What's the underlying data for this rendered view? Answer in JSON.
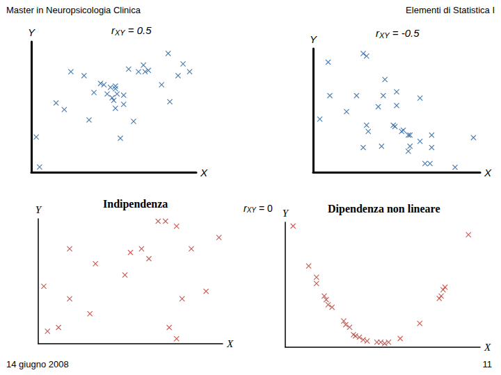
{
  "header": {
    "left": "Master in Neuropsicologia Clinica",
    "right": "Elementi di Statistica I"
  },
  "footer": {
    "left": "14 giugno 2008",
    "right": "11"
  },
  "chart_data": [
    {
      "type": "scatter",
      "title": "rXY = 0.5",
      "xlabel": "X",
      "ylabel": "Y",
      "xlim": [
        0,
        10
      ],
      "ylim": [
        0,
        10
      ],
      "tick_labels": false,
      "grid": false,
      "color": "#1f5c99",
      "marker": "x",
      "x": [
        0.3,
        0.5,
        1.5,
        2.0,
        2.4,
        3.2,
        3.5,
        3.8,
        4.2,
        4.4,
        4.6,
        4.8,
        4.9,
        5.0,
        5.1,
        5.1,
        5.1,
        5.2,
        5.4,
        5.6,
        5.6,
        5.9,
        6.2,
        6.5,
        6.8,
        6.9,
        7.1,
        7.9,
        8.3,
        8.4,
        8.9,
        9.2,
        9.6
      ],
      "values": [
        2.7,
        0.4,
        5.3,
        4.8,
        7.7,
        7.4,
        4.0,
        6.1,
        6.8,
        6.7,
        6.0,
        6.5,
        5.7,
        5.5,
        6.4,
        4.9,
        6.6,
        6.0,
        2.6,
        5.2,
        5.9,
        7.9,
        3.9,
        7.7,
        8.2,
        7.7,
        7.8,
        6.7,
        9.1,
        5.4,
        7.4,
        8.3,
        7.7
      ]
    },
    {
      "type": "scatter",
      "title": "rXY = -0.5",
      "xlabel": "X",
      "ylabel": "Y",
      "xlim": [
        0,
        10
      ],
      "ylim": [
        0,
        10
      ],
      "tick_labels": false,
      "grid": false,
      "color": "#1f5c99",
      "marker": "x",
      "x": [
        0.4,
        0.9,
        1.0,
        2.0,
        2.6,
        3.0,
        3.2,
        3.2,
        3.3,
        3.0,
        3.9,
        4.1,
        4.2,
        4.3,
        4.8,
        4.9,
        5.0,
        5.0,
        5.3,
        5.4,
        5.7,
        5.8,
        5.8,
        5.7,
        6.4,
        6.4,
        6.7,
        7.0,
        7.1,
        7.1,
        8.5,
        9.6
      ],
      "values": [
        4.3,
        8.9,
        6.2,
        4.9,
        6.2,
        9.6,
        9.4,
        3.8,
        3.3,
        2.0,
        5.3,
        2.1,
        6.2,
        7.5,
        3.8,
        3.7,
        5.4,
        6.5,
        3.3,
        3.4,
        3.0,
        2.1,
        3.0,
        1.7,
        6.0,
        2.5,
        0.7,
        0.7,
        3.0,
        2.0,
        0.4,
        2.8
      ]
    },
    {
      "type": "scatter",
      "title": "Indipendenza",
      "xlabel": "X",
      "ylabel": "Y",
      "xlim": [
        0,
        10
      ],
      "ylim": [
        0,
        10
      ],
      "tick_labels": false,
      "grid": false,
      "color": "#b8332b",
      "marker": "x",
      "x": [
        0.3,
        0.5,
        1.1,
        1.7,
        1.7,
        2.8,
        3.1,
        4.7,
        5.0,
        5.6,
        6.0,
        6.5,
        6.9,
        7.1,
        7.5,
        7.5,
        7.8,
        8.3,
        9.1,
        9.8
      ],
      "values": [
        4.6,
        1.0,
        1.3,
        7.6,
        3.6,
        2.4,
        6.4,
        5.5,
        7.3,
        7.6,
        6.8,
        9.8,
        9.8,
        1.3,
        0.4,
        9.4,
        3.6,
        7.6,
        4.2,
        8.5
      ]
    },
    {
      "type": "scatter",
      "title": "Dipendenza non lineare",
      "annotation": "rXY = 0",
      "xlabel": "X",
      "ylabel": "Y",
      "xlim": [
        0,
        10
      ],
      "ylim": [
        0,
        10
      ],
      "tick_labels": false,
      "grid": false,
      "color": "#b8332b",
      "marker": "x",
      "x": [
        0.4,
        1.2,
        1.6,
        1.6,
        2.0,
        2.1,
        2.2,
        2.4,
        3.0,
        3.1,
        3.3,
        3.5,
        3.6,
        3.8,
        4.0,
        4.2,
        4.7,
        4.9,
        5.1,
        5.3,
        5.9,
        6.9,
        7.9,
        8.0,
        8.1,
        8.2,
        9.4
      ],
      "values": [
        9.7,
        6.5,
        5.6,
        5.1,
        4.1,
        3.8,
        3.4,
        3.2,
        2.1,
        1.8,
        1.6,
        1.0,
        0.9,
        0.8,
        0.6,
        0.5,
        0.4,
        0.4,
        0.3,
        0.4,
        0.7,
        1.9,
        3.9,
        4.1,
        4.6,
        4.8,
        9.0
      ]
    }
  ]
}
